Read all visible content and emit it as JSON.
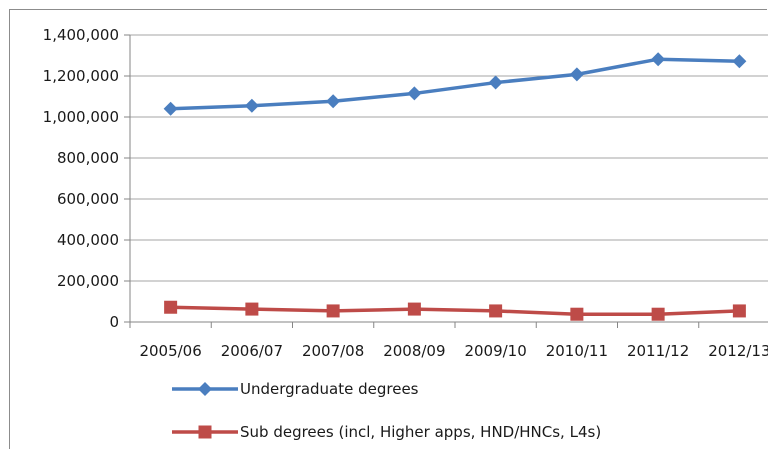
{
  "chart_data": {
    "type": "line",
    "categories": [
      "2005/06",
      "2006/07",
      "2007/08",
      "2008/09",
      "2009/10",
      "2010/11",
      "2011/12",
      "2012/13"
    ],
    "series": [
      {
        "name": "Undergraduate degrees",
        "values": [
          1040000,
          1055000,
          1077000,
          1115000,
          1168000,
          1208000,
          1282000,
          1272000
        ],
        "color": "#4a7ebf",
        "marker": "diamond"
      },
      {
        "name": "Sub degrees (incl, Higher apps, HND/HNCs, L4s)",
        "values": [
          72000,
          63000,
          54000,
          63000,
          54000,
          38000,
          38000,
          54000
        ],
        "color": "#be4b48",
        "marker": "square"
      }
    ],
    "y_ticks": [
      "0",
      "200,000",
      "400,000",
      "600,000",
      "800,000",
      "1,000,000",
      "1,200,000",
      "1,400,000"
    ],
    "ylim": [
      0,
      1400000
    ],
    "grid": true,
    "legend_position": "bottom-left"
  }
}
